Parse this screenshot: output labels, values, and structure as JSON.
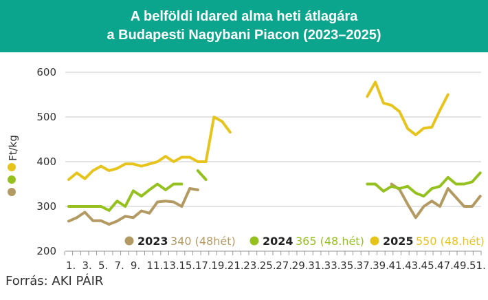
{
  "chart_data": {
    "type": "line",
    "title": [
      "A belföldi Idared alma heti átlagára",
      "a Budapesti Nagybani Piacon (2023–2025)"
    ],
    "ylabel": "Ft/kg",
    "xlabel": "",
    "ylim": [
      200,
      600
    ],
    "yticks": [
      200,
      300,
      400,
      500,
      600
    ],
    "xlim": [
      1,
      52
    ],
    "xtick_labels": [
      "1.",
      "3.",
      "5.",
      "7.",
      "9.",
      "11.",
      "13.",
      "15.",
      "17.",
      "19.",
      "21.",
      "23.",
      "25.",
      "27.",
      "29.",
      "31.",
      "33.",
      "35.",
      "37.",
      "39.",
      "41.",
      "43.",
      "45.",
      "47.",
      "49.",
      "51."
    ],
    "grid": true,
    "legend_placement": "bottom",
    "series": [
      {
        "name": "2023",
        "note": "340 (48hét)",
        "color": "#b39a62",
        "values": [
          267,
          275,
          287,
          268,
          268,
          260,
          267,
          278,
          275,
          290,
          285,
          310,
          312,
          310,
          300,
          340,
          337,
          null,
          null,
          null,
          null,
          null,
          null,
          null,
          null,
          null,
          null,
          null,
          null,
          null,
          null,
          null,
          null,
          null,
          null,
          null,
          null,
          null,
          null,
          null,
          350,
          338,
          305,
          275,
          300,
          312,
          300,
          340,
          320,
          300,
          300,
          323
        ]
      },
      {
        "name": "2024",
        "note": "365 (48.hét)",
        "color": "#95c11f",
        "values": [
          300,
          300,
          300,
          300,
          300,
          291,
          312,
          300,
          335,
          323,
          337,
          350,
          337,
          350,
          350,
          null,
          380,
          360,
          null,
          null,
          null,
          null,
          null,
          null,
          null,
          null,
          null,
          null,
          null,
          null,
          null,
          null,
          null,
          null,
          null,
          null,
          null,
          350,
          350,
          334,
          345,
          340,
          345,
          330,
          323,
          340,
          345,
          365,
          350,
          350,
          355,
          375
        ]
      },
      {
        "name": "2025",
        "note": "550 (48.hét)",
        "color": "#e6c41c",
        "values": [
          360,
          375,
          362,
          380,
          390,
          380,
          385,
          395,
          395,
          390,
          395,
          400,
          412,
          400,
          410,
          410,
          400,
          400,
          500,
          490,
          466,
          null,
          null,
          null,
          null,
          null,
          null,
          null,
          null,
          null,
          null,
          null,
          null,
          null,
          null,
          null,
          null,
          546,
          578,
          531,
          526,
          512,
          474,
          460,
          475,
          477,
          515,
          550,
          null,
          null,
          null,
          null
        ]
      }
    ]
  },
  "source": "Forrás: AKI PÁIR"
}
